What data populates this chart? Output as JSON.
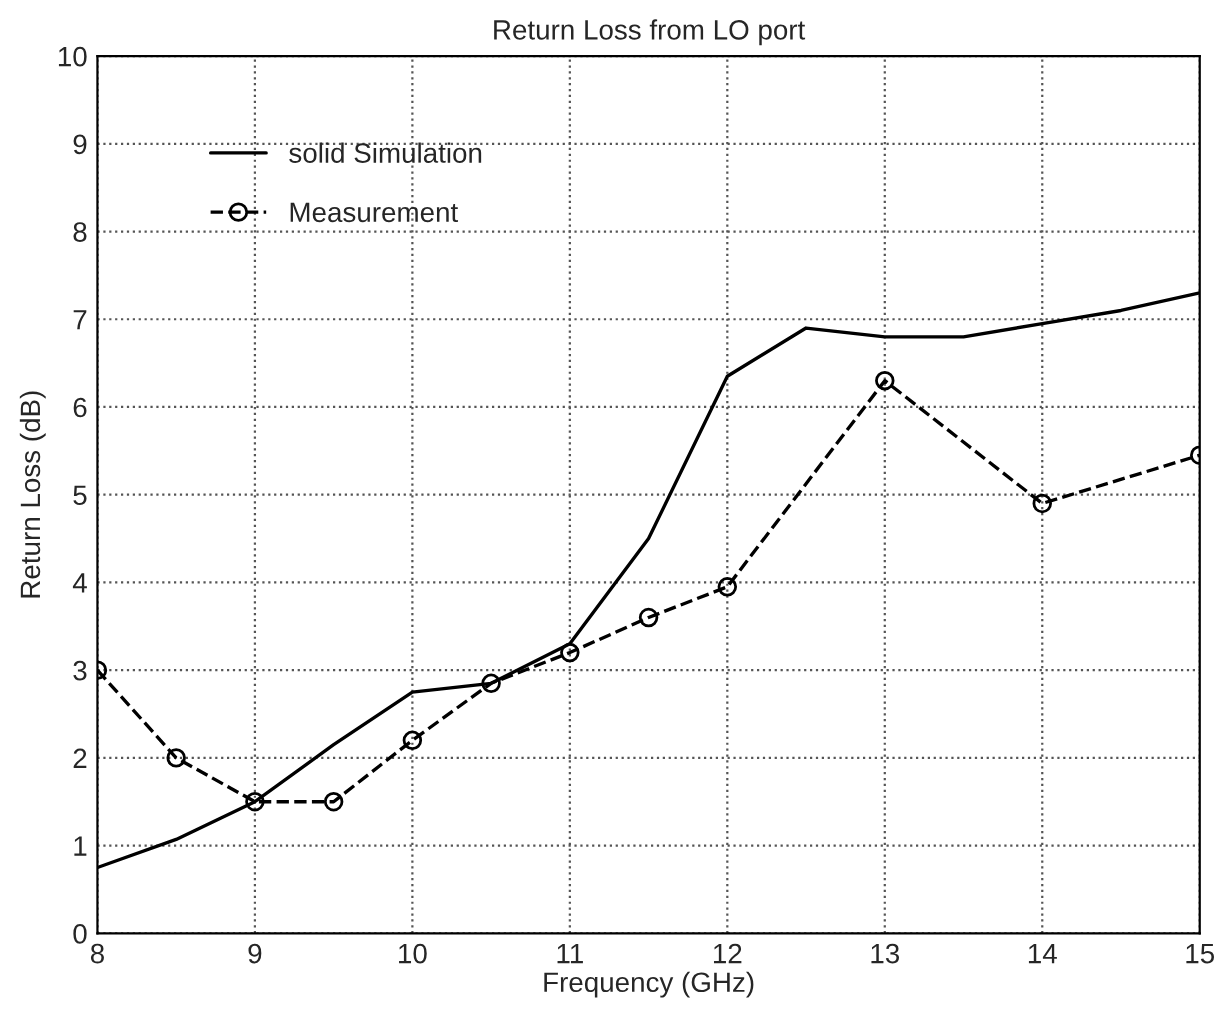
{
  "chart_data": {
    "type": "line",
    "title": "Return Loss from LO port",
    "xlabel": "Frequency (GHz)",
    "ylabel": "Return Loss (dB)",
    "xlim": [
      8,
      15
    ],
    "xticks": [
      8,
      9,
      10,
      11,
      12,
      13,
      14,
      15
    ],
    "ylim": [
      0,
      10
    ],
    "yticks": [
      0,
      1,
      2,
      3,
      4,
      5,
      6,
      7,
      8,
      9,
      10
    ],
    "grid": true,
    "legend": "top left",
    "series": [
      {
        "name": "solid Simulation",
        "color": "#000000",
        "line_style": "solid",
        "marker": "none",
        "x": [
          8,
          8.5,
          9,
          9.5,
          10,
          10.5,
          11,
          11.5,
          12,
          12.5,
          13,
          13.5,
          14,
          14.5,
          15
        ],
        "values": [
          0.75,
          1.07,
          1.5,
          2.15,
          2.75,
          2.85,
          3.3,
          4.5,
          6.35,
          6.9,
          6.8,
          6.8,
          6.95,
          7.1,
          7.3
        ]
      },
      {
        "name": "Measurement",
        "color": "#000000",
        "line_style": "dashed",
        "marker": "circle",
        "x": [
          8,
          8.5,
          9,
          9.5,
          10,
          10.5,
          11,
          11.5,
          12,
          13,
          14,
          15
        ],
        "values": [
          3,
          2,
          1.5,
          1.5,
          2.2,
          2.85,
          3.2,
          3.6,
          3.95,
          6.3,
          4.9,
          5.45
        ]
      }
    ]
  }
}
